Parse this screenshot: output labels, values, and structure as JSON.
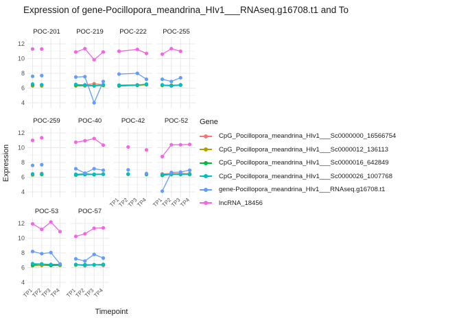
{
  "title": "Expression of gene-Pocillopora_meandrina_HIv1___RNAseq.g16708.t1 and To",
  "axes": {
    "x_title": "Timepoint",
    "y_title": "Expression",
    "y_ticks": [
      "12",
      "10",
      "8",
      "6",
      "4"
    ],
    "x_ticks": [
      "TP1",
      "TP2",
      "TP3",
      "TP4"
    ]
  },
  "legend": {
    "title": "Gene",
    "items": [
      {
        "label": "CpG_Pocillopora_meandrina_HIv1___Sc0000000_16566754",
        "color": "#F8766D"
      },
      {
        "label": "CpG_Pocillopora_meandrina_HIv1___Sc0000012_136113",
        "color": "#B79F00"
      },
      {
        "label": "CpG_Pocillopora_meandrina_HIv1___Sc0000016_642849",
        "color": "#00BA38"
      },
      {
        "label": "CpG_Pocillopora_meandrina_HIv1___Sc0000026_1007768",
        "color": "#00BFC4"
      },
      {
        "label": "gene-Pocillopora_meandrina_HIv1___RNAseq.g16708.t1",
        "color": "#619CFF"
      },
      {
        "label": "lncRNA_18456",
        "color": "#F564E3"
      }
    ]
  },
  "chart_data": {
    "type": "line",
    "title": "Expression of gene-Pocillopora_meandrina_HIv1___RNAseq.g16708.t1 and To",
    "xlabel": "Timepoint",
    "ylabel": "Expression",
    "x_categories": [
      "TP1",
      "TP2",
      "TP3",
      "TP4"
    ],
    "ylim": [
      4,
      12
    ],
    "grid": "on",
    "legend_position": "right",
    "series": [
      "CpG_Pocillopora_meandrina_HIv1___Sc0000000_16566754",
      "CpG_Pocillopora_meandrina_HIv1___Sc0000012_136113",
      "CpG_Pocillopora_meandrina_HIv1___Sc0000016_642849",
      "CpG_Pocillopora_meandrina_HIv1___Sc0000026_1007768",
      "gene-Pocillopora_meandrina_HIv1___RNAseq.g16708.t1",
      "lncRNA_18456"
    ],
    "facets": [
      {
        "name": "POC-201",
        "x": [
          "TP1",
          "TP2"
        ],
        "lines": false,
        "values": [
          [
            6.4,
            6.4
          ],
          [
            6.3,
            6.3
          ],
          [
            6.45,
            6.45
          ],
          [
            6.55,
            6.45
          ],
          [
            7.6,
            7.7
          ],
          [
            11.3,
            11.3
          ]
        ]
      },
      {
        "name": "POC-219",
        "x": [
          "TP1",
          "TP2",
          "TP3",
          "TP4"
        ],
        "lines": true,
        "values": [
          [
            6.45,
            6.45,
            6.6,
            6.45
          ],
          [
            6.3,
            6.3,
            6.3,
            6.35
          ],
          [
            6.4,
            6.4,
            6.35,
            6.4
          ],
          [
            6.5,
            6.4,
            6.3,
            6.45
          ],
          [
            7.5,
            7.55,
            4.0,
            6.9
          ],
          [
            10.9,
            11.35,
            9.85,
            10.9
          ]
        ]
      },
      {
        "name": "POC-222",
        "x": [
          "TP1",
          "TP3",
          "TP4"
        ],
        "lines": true,
        "values": [
          [
            6.4,
            6.45,
            6.5
          ],
          [
            6.3,
            6.35,
            6.45
          ],
          [
            6.3,
            6.4,
            6.5
          ],
          [
            6.4,
            6.4,
            6.55
          ],
          [
            7.9,
            8.0,
            7.2
          ],
          [
            11.0,
            11.25,
            10.7
          ]
        ]
      },
      {
        "name": "POC-255",
        "x": [
          "TP1",
          "TP2",
          "TP3"
        ],
        "lines": true,
        "values": [
          [
            6.4,
            6.4,
            6.4
          ],
          [
            6.35,
            6.3,
            6.4
          ],
          [
            6.4,
            6.35,
            6.45
          ],
          [
            6.45,
            6.3,
            6.4
          ],
          [
            7.2,
            6.9,
            7.4
          ],
          [
            10.6,
            11.35,
            11.0
          ]
        ]
      },
      {
        "name": "POC-259",
        "x": [
          "TP1",
          "TP2"
        ],
        "lines": false,
        "values": [
          [
            6.4,
            6.5
          ],
          [
            6.3,
            6.35
          ],
          [
            6.4,
            6.4
          ],
          [
            6.45,
            6.4
          ],
          [
            7.6,
            7.7
          ],
          [
            11.0,
            11.35
          ]
        ]
      },
      {
        "name": "POC-40",
        "x": [
          "TP1",
          "TP2",
          "TP3",
          "TP4"
        ],
        "lines": true,
        "values": [
          [
            6.4,
            6.45,
            6.4,
            6.45
          ],
          [
            6.3,
            6.5,
            6.35,
            6.4
          ],
          [
            6.3,
            6.35,
            6.35,
            6.4
          ],
          [
            6.4,
            6.4,
            6.4,
            6.4
          ],
          [
            7.15,
            6.55,
            7.15,
            6.95
          ],
          [
            10.75,
            10.95,
            11.25,
            10.35
          ]
        ]
      },
      {
        "name": "POC-42",
        "x": [
          "TP2",
          "TP4"
        ],
        "lines": false,
        "values": [
          [
            6.4,
            6.45
          ],
          [
            6.4,
            6.35
          ],
          [
            6.4,
            6.4
          ],
          [
            6.45,
            6.4
          ],
          [
            7.0,
            6.5
          ],
          [
            10.1,
            9.7
          ]
        ]
      },
      {
        "name": "POC-52",
        "x": [
          "TP1",
          "TP2",
          "TP3",
          "TP4"
        ],
        "lines": true,
        "values": [
          [
            6.45,
            6.5,
            6.5,
            6.5
          ],
          [
            6.3,
            6.35,
            6.35,
            6.35
          ],
          [
            6.25,
            6.4,
            6.4,
            6.4
          ],
          [
            6.35,
            6.4,
            6.4,
            6.4
          ],
          [
            4.1,
            6.65,
            6.7,
            6.95
          ],
          [
            8.8,
            10.4,
            10.4,
            10.45
          ]
        ]
      },
      {
        "name": "POC-53",
        "x": [
          "TP1",
          "TP2",
          "TP3",
          "TP4"
        ],
        "lines": true,
        "values": [
          [
            6.4,
            6.45,
            6.35,
            6.45
          ],
          [
            6.25,
            6.3,
            6.3,
            6.3
          ],
          [
            6.35,
            6.5,
            6.3,
            6.4
          ],
          [
            6.55,
            6.5,
            6.45,
            6.45
          ],
          [
            8.2,
            7.9,
            8.05,
            6.5
          ],
          [
            11.95,
            11.2,
            12.2,
            10.9
          ]
        ]
      },
      {
        "name": "POC-57",
        "x": [
          "TP1",
          "TP2",
          "TP3",
          "TP4"
        ],
        "lines": true,
        "values": [
          [
            6.4,
            6.25,
            6.4,
            6.3
          ],
          [
            6.35,
            6.4,
            6.35,
            6.4
          ],
          [
            6.4,
            6.4,
            6.4,
            6.45
          ],
          [
            6.45,
            6.35,
            6.4,
            6.4
          ],
          [
            7.2,
            6.9,
            7.8,
            7.3
          ],
          [
            10.25,
            10.6,
            11.35,
            11.4
          ]
        ]
      }
    ]
  }
}
